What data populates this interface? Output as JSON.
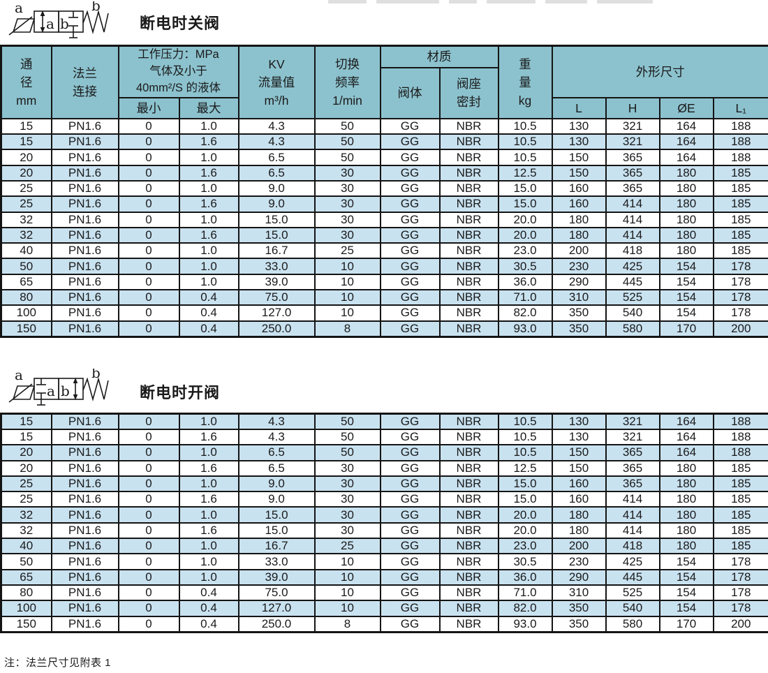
{
  "page": {
    "note": "注：法兰尺寸见附表 1"
  },
  "colors": {
    "header_bg": "#8CC2CE",
    "alt_row_bg": "#C9E2F0",
    "border": "#141414",
    "text": "#1A1A1A",
    "page_bg": "#FFFFFF"
  },
  "sections": [
    {
      "title": "断电时关阀",
      "symbol": {
        "port_a": "a",
        "port_b": "b",
        "box_a_label": "a",
        "box_b_label": "b"
      }
    },
    {
      "title": "断电时开阀",
      "symbol": {
        "port_a": "a",
        "port_b": "b",
        "box_a_label": "a",
        "box_b_label": "b"
      }
    }
  ],
  "table": {
    "column_keys": [
      "dn",
      "flange",
      "pmin",
      "pmax",
      "kv",
      "freq",
      "body",
      "seal",
      "weight",
      "L",
      "H",
      "OE",
      "L1"
    ],
    "header": {
      "dn": "通\n径\nmm",
      "flange": "法兰\n连接",
      "pressure_group": "工作压力：MPa\n气体及小于\n40mm²/S 的液体",
      "pmin": "最小",
      "pmax": "最大",
      "kv": "KV\n流量值\nm³/h",
      "freq": "切换\n频率\n1/min",
      "material_group": "材质",
      "body": "阀体",
      "seal": "阀座\n密封",
      "weight": "重\n量\nkg",
      "dims_group": "外形尺寸",
      "L": "L",
      "H": "H",
      "OE": "ØE",
      "L1": "L₁"
    },
    "rows_close": [
      [
        "15",
        "PN1.6",
        "0",
        "1.0",
        "4.3",
        "50",
        "GG",
        "NBR",
        "10.5",
        "130",
        "321",
        "164",
        "188"
      ],
      [
        "15",
        "PN1.6",
        "0",
        "1.6",
        "4.3",
        "50",
        "GG",
        "NBR",
        "10.5",
        "130",
        "321",
        "164",
        "188"
      ],
      [
        "20",
        "PN1.6",
        "0",
        "1.0",
        "6.5",
        "50",
        "GG",
        "NBR",
        "10.5",
        "150",
        "365",
        "164",
        "188"
      ],
      [
        "20",
        "PN1.6",
        "0",
        "1.6",
        "6.5",
        "30",
        "GG",
        "NBR",
        "12.5",
        "150",
        "365",
        "180",
        "185"
      ],
      [
        "25",
        "PN1.6",
        "0",
        "1.0",
        "9.0",
        "30",
        "GG",
        "NBR",
        "15.0",
        "160",
        "365",
        "180",
        "185"
      ],
      [
        "25",
        "PN1.6",
        "0",
        "1.6",
        "9.0",
        "30",
        "GG",
        "NBR",
        "15.0",
        "160",
        "414",
        "180",
        "185"
      ],
      [
        "32",
        "PN1.6",
        "0",
        "1.0",
        "15.0",
        "30",
        "GG",
        "NBR",
        "20.0",
        "180",
        "414",
        "180",
        "185"
      ],
      [
        "32",
        "PN1.6",
        "0",
        "1.6",
        "15.0",
        "30",
        "GG",
        "NBR",
        "20.0",
        "180",
        "414",
        "180",
        "185"
      ],
      [
        "40",
        "PN1.6",
        "0",
        "1.0",
        "16.7",
        "25",
        "GG",
        "NBR",
        "23.0",
        "200",
        "418",
        "180",
        "185"
      ],
      [
        "50",
        "PN1.6",
        "0",
        "1.0",
        "33.0",
        "10",
        "GG",
        "NBR",
        "30.5",
        "230",
        "425",
        "154",
        "178"
      ],
      [
        "65",
        "PN1.6",
        "0",
        "1.0",
        "39.0",
        "10",
        "GG",
        "NBR",
        "36.0",
        "290",
        "445",
        "154",
        "178"
      ],
      [
        "80",
        "PN1.6",
        "0",
        "0.4",
        "75.0",
        "10",
        "GG",
        "NBR",
        "71.0",
        "310",
        "525",
        "154",
        "178"
      ],
      [
        "100",
        "PN1.6",
        "0",
        "0.4",
        "127.0",
        "10",
        "GG",
        "NBR",
        "82.0",
        "350",
        "540",
        "154",
        "178"
      ],
      [
        "150",
        "PN1.6",
        "0",
        "0.4",
        "250.0",
        "8",
        "GG",
        "NBR",
        "93.0",
        "350",
        "580",
        "170",
        "200"
      ]
    ],
    "rows_open": [
      [
        "15",
        "PN1.6",
        "0",
        "1.0",
        "4.3",
        "50",
        "GG",
        "NBR",
        "10.5",
        "130",
        "321",
        "164",
        "188"
      ],
      [
        "15",
        "PN1.6",
        "0",
        "1.6",
        "4.3",
        "50",
        "GG",
        "NBR",
        "10.5",
        "130",
        "321",
        "164",
        "188"
      ],
      [
        "20",
        "PN1.6",
        "0",
        "1.0",
        "6.5",
        "50",
        "GG",
        "NBR",
        "10.5",
        "150",
        "365",
        "164",
        "188"
      ],
      [
        "20",
        "PN1.6",
        "0",
        "1.6",
        "6.5",
        "30",
        "GG",
        "NBR",
        "12.5",
        "150",
        "365",
        "180",
        "185"
      ],
      [
        "25",
        "PN1.6",
        "0",
        "1.0",
        "9.0",
        "30",
        "GG",
        "NBR",
        "15.0",
        "160",
        "365",
        "180",
        "185"
      ],
      [
        "25",
        "PN1.6",
        "0",
        "1.6",
        "9.0",
        "30",
        "GG",
        "NBR",
        "15.0",
        "160",
        "414",
        "180",
        "185"
      ],
      [
        "32",
        "PN1.6",
        "0",
        "1.0",
        "15.0",
        "30",
        "GG",
        "NBR",
        "20.0",
        "180",
        "414",
        "180",
        "185"
      ],
      [
        "32",
        "PN1.6",
        "0",
        "1.6",
        "15.0",
        "30",
        "GG",
        "NBR",
        "20.0",
        "180",
        "414",
        "180",
        "185"
      ],
      [
        "40",
        "PN1.6",
        "0",
        "1.0",
        "16.7",
        "25",
        "GG",
        "NBR",
        "23.0",
        "200",
        "418",
        "180",
        "185"
      ],
      [
        "50",
        "PN1.6",
        "0",
        "1.0",
        "33.0",
        "10",
        "GG",
        "NBR",
        "30.5",
        "230",
        "425",
        "154",
        "178"
      ],
      [
        "65",
        "PN1.6",
        "0",
        "1.0",
        "39.0",
        "10",
        "GG",
        "NBR",
        "36.0",
        "290",
        "445",
        "154",
        "178"
      ],
      [
        "80",
        "PN1.6",
        "0",
        "0.4",
        "75.0",
        "10",
        "GG",
        "NBR",
        "71.0",
        "310",
        "525",
        "154",
        "178"
      ],
      [
        "100",
        "PN1.6",
        "0",
        "0.4",
        "127.0",
        "10",
        "GG",
        "NBR",
        "82.0",
        "350",
        "540",
        "154",
        "178"
      ],
      [
        "150",
        "PN1.6",
        "0",
        "0.4",
        "250.0",
        "8",
        "GG",
        "NBR",
        "93.0",
        "350",
        "580",
        "170",
        "200"
      ]
    ]
  }
}
